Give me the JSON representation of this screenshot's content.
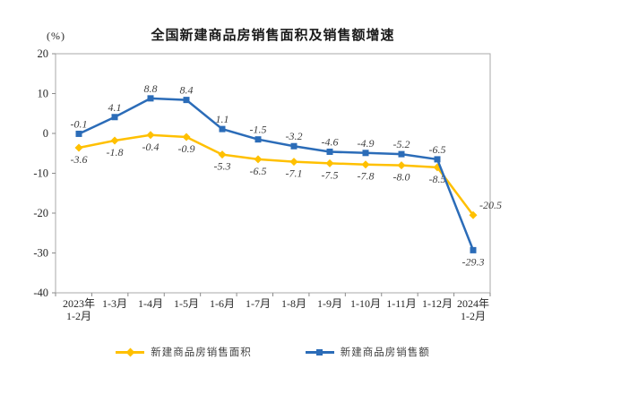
{
  "page": {
    "background": "#ffffff"
  },
  "chart_data": {
    "type": "line",
    "title": "全国新建商品房销售面积及销售额增速",
    "y_axis_unit": "(%)",
    "categories": [
      "2023年\n1-2月",
      "1-3月",
      "1-4月",
      "1-5月",
      "1-6月",
      "1-7月",
      "1-8月",
      "1-9月",
      "1-10月",
      "1-11月",
      "1-12月",
      "2024年\n1-2月"
    ],
    "series": [
      {
        "name": "新建商品房销售面积",
        "color": "#FFC000",
        "marker": "diamond",
        "values": [
          -3.6,
          -1.8,
          -0.4,
          -0.9,
          -5.3,
          -6.5,
          -7.1,
          -7.5,
          -7.8,
          -8.0,
          -8.5,
          -20.5
        ],
        "label_positions": [
          "below",
          "below",
          "below",
          "below",
          "below",
          "below",
          "below",
          "below",
          "below",
          "below",
          "below",
          "right"
        ]
      },
      {
        "name": "新建商品房销售额",
        "color": "#2B6CB8",
        "marker": "square",
        "values": [
          -0.1,
          4.1,
          8.8,
          8.4,
          1.1,
          -1.5,
          -3.2,
          -4.6,
          -4.9,
          -5.2,
          -6.5,
          -29.3
        ],
        "label_positions": [
          "above",
          "above",
          "above",
          "above",
          "above",
          "above",
          "above",
          "above",
          "above",
          "above",
          "above",
          "below"
        ]
      }
    ],
    "ylim": [
      -40,
      20
    ],
    "y_ticks": [
      20,
      10,
      0,
      -10,
      -20,
      -30,
      -40
    ],
    "grid": false,
    "legend_position": "bottom",
    "data_label_color": "#3f3f3f",
    "axis_color": "#8a8a8a",
    "plot_border_color": "#a9a9a9",
    "tick_label_color": "#262626"
  }
}
